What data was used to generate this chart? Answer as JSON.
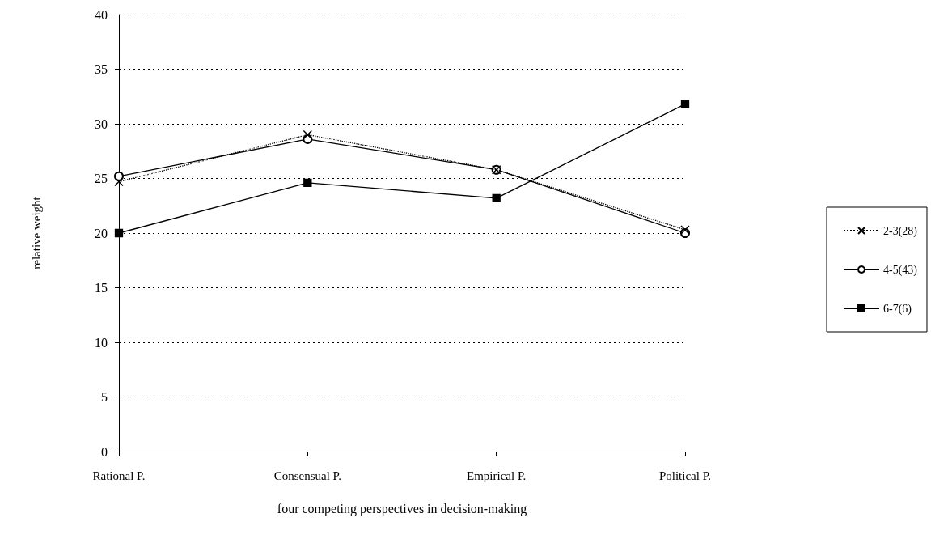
{
  "chart_data": {
    "type": "line",
    "xlabel": "four competing perspectives in decision-making",
    "ylabel": "relative weight",
    "categories": [
      "Rational P.",
      "Consensual P.",
      "Empirical P.",
      "Political P."
    ],
    "series": [
      {
        "name": "2-3(28)",
        "color": "#000000",
        "values": [
          24.7,
          29.0,
          25.8,
          20.3
        ],
        "marker": "cross",
        "line_style": "dotted"
      },
      {
        "name": "4-5(43)",
        "color": "#000000",
        "values": [
          25.2,
          28.6,
          25.8,
          20.0
        ],
        "marker": "circle",
        "line_style": "solid"
      },
      {
        "name": "6-7(6)",
        "color": "#000000",
        "values": [
          20.0,
          24.6,
          23.2,
          31.8
        ],
        "marker": "square",
        "line_style": "solid"
      }
    ],
    "ylim": [
      0,
      40
    ],
    "yticks": [
      0,
      5,
      10,
      15,
      20,
      25,
      30,
      35,
      40
    ],
    "grid": "y",
    "legend": "right"
  }
}
